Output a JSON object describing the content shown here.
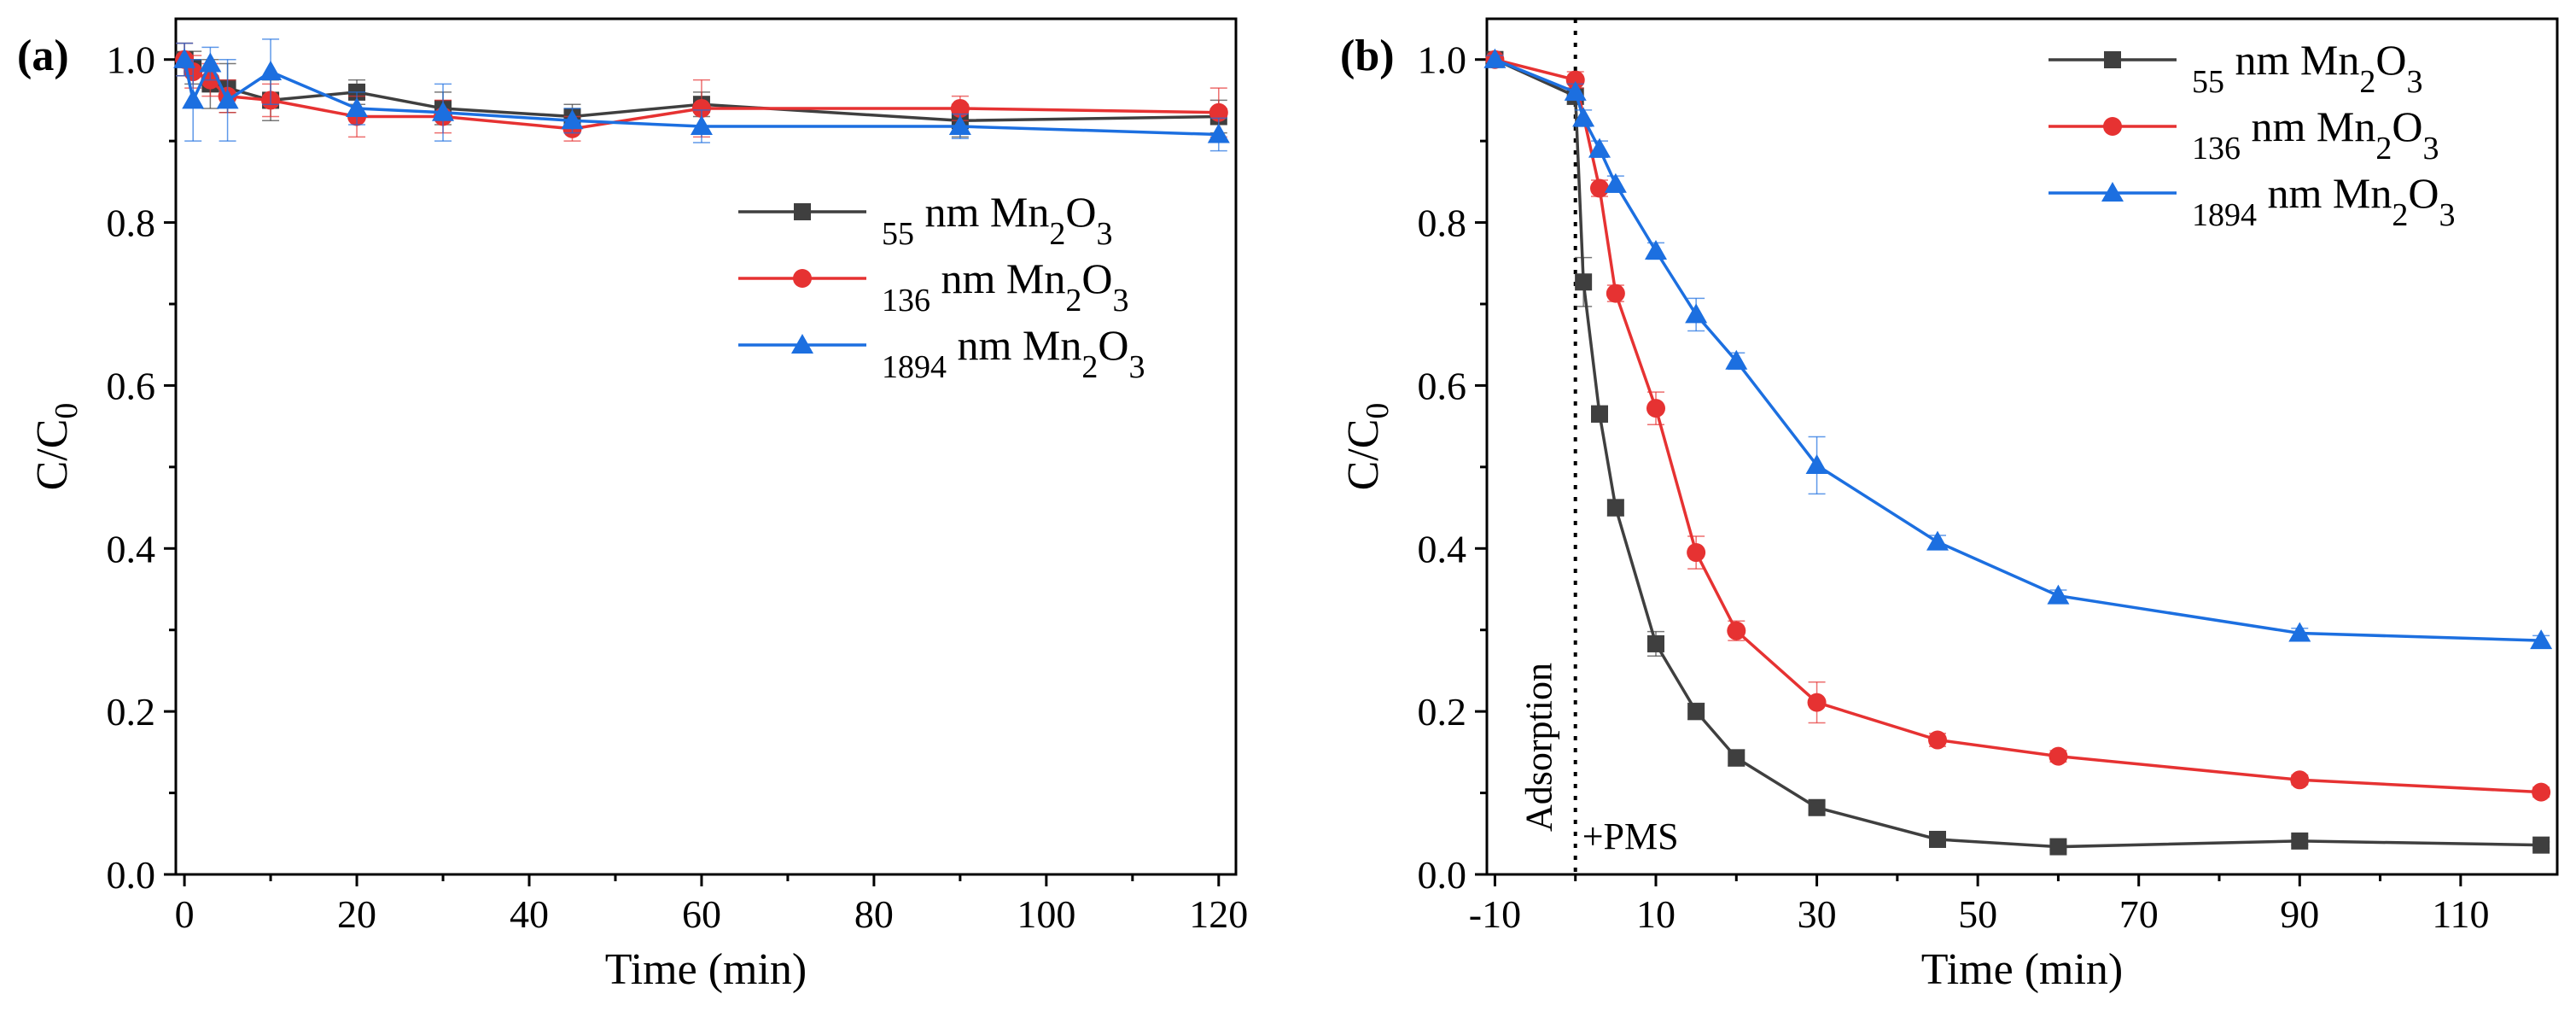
{
  "colors": {
    "series_55": "#3f3f3f",
    "series_136": "#e63232",
    "series_1894": "#1c6fe0",
    "axis": "#000000"
  },
  "chart_data": [
    {
      "panel": "(a)",
      "type": "line",
      "xlabel": "Time (min)",
      "ylabel": "C/C0",
      "xlim": [
        -1,
        122
      ],
      "ylim": [
        0,
        1.05
      ],
      "xticks": [
        0,
        20,
        40,
        60,
        80,
        100,
        120
      ],
      "yticks": [
        0.0,
        0.2,
        0.4,
        0.6,
        0.8,
        1.0
      ],
      "legend_position": "top-right",
      "series": [
        {
          "name": "55 nm  Mn2O3",
          "marker": "square",
          "x": [
            0,
            1,
            3,
            5,
            10,
            20,
            30,
            45,
            60,
            90,
            120
          ],
          "y": [
            1.0,
            0.99,
            0.97,
            0.965,
            0.95,
            0.96,
            0.94,
            0.93,
            0.945,
            0.925,
            0.93
          ],
          "err": [
            0.02,
            0.02,
            0.03,
            0.03,
            0.025,
            0.015,
            0.02,
            0.015,
            0.015,
            0.02,
            0.02
          ]
        },
        {
          "name": "136 nm  Mn2O3",
          "marker": "circle",
          "x": [
            0,
            1,
            3,
            5,
            10,
            20,
            30,
            45,
            60,
            90,
            120
          ],
          "y": [
            1.0,
            0.985,
            0.975,
            0.955,
            0.95,
            0.93,
            0.93,
            0.915,
            0.94,
            0.94,
            0.935
          ],
          "err": [
            0.02,
            0.02,
            0.02,
            0.02,
            0.02,
            0.025,
            0.02,
            0.015,
            0.035,
            0.015,
            0.03
          ]
        },
        {
          "name": "1894 nm  Mn2O3",
          "marker": "triangle",
          "x": [
            0,
            1,
            3,
            5,
            10,
            20,
            30,
            45,
            60,
            90,
            120
          ],
          "y": [
            1.0,
            0.95,
            0.995,
            0.95,
            0.985,
            0.94,
            0.935,
            0.925,
            0.918,
            0.918,
            0.908
          ],
          "err": [
            0.02,
            0.05,
            0.02,
            0.05,
            0.04,
            0.02,
            0.035,
            0.015,
            0.02,
            0.015,
            0.02
          ]
        }
      ]
    },
    {
      "panel": "(b)",
      "type": "line",
      "xlabel": "Time (min)",
      "ylabel": "C/C0",
      "xlim": [
        -11,
        122
      ],
      "ylim": [
        0,
        1.05
      ],
      "xticks": [
        -10,
        10,
        30,
        50,
        70,
        90,
        110
      ],
      "yticks": [
        0.0,
        0.2,
        0.4,
        0.6,
        0.8,
        1.0
      ],
      "vline_x": 0,
      "annotations": [
        "Adsorption",
        "+PMS"
      ],
      "legend_position": "top-right",
      "series": [
        {
          "name": "55 nm  Mn2O3",
          "marker": "square",
          "x": [
            -10,
            0,
            1,
            3,
            5,
            10,
            15,
            20,
            30,
            45,
            60,
            90,
            120
          ],
          "y": [
            1.0,
            0.955,
            0.727,
            0.565,
            0.45,
            0.283,
            0.2,
            0.143,
            0.082,
            0.043,
            0.034,
            0.041,
            0.036
          ],
          "err": [
            0.005,
            0.01,
            0.03,
            0.01,
            0.01,
            0.015,
            0.01,
            0.01,
            0.008,
            0.005,
            0.004,
            0.005,
            0.004
          ]
        },
        {
          "name": "136 nm  Mn2O3",
          "marker": "circle",
          "x": [
            -10,
            0,
            3,
            5,
            10,
            15,
            20,
            30,
            45,
            60,
            90,
            120
          ],
          "y": [
            1.0,
            0.975,
            0.842,
            0.713,
            0.572,
            0.395,
            0.299,
            0.211,
            0.165,
            0.145,
            0.116,
            0.101
          ],
          "err": [
            0.005,
            0.01,
            0.01,
            0.01,
            0.02,
            0.02,
            0.012,
            0.025,
            0.008,
            0.007,
            0.006,
            0.006
          ]
        },
        {
          "name": "1894 nm  Mn2O3",
          "marker": "triangle",
          "x": [
            -10,
            0,
            1,
            3,
            5,
            10,
            15,
            20,
            30,
            45,
            60,
            90,
            120
          ],
          "y": [
            1.0,
            0.96,
            0.928,
            0.89,
            0.847,
            0.765,
            0.687,
            0.63,
            0.502,
            0.408,
            0.342,
            0.296,
            0.287
          ],
          "err": [
            0.005,
            0.01,
            0.01,
            0.01,
            0.01,
            0.01,
            0.02,
            0.01,
            0.035,
            0.008,
            0.007,
            0.006,
            0.006
          ]
        }
      ]
    }
  ]
}
